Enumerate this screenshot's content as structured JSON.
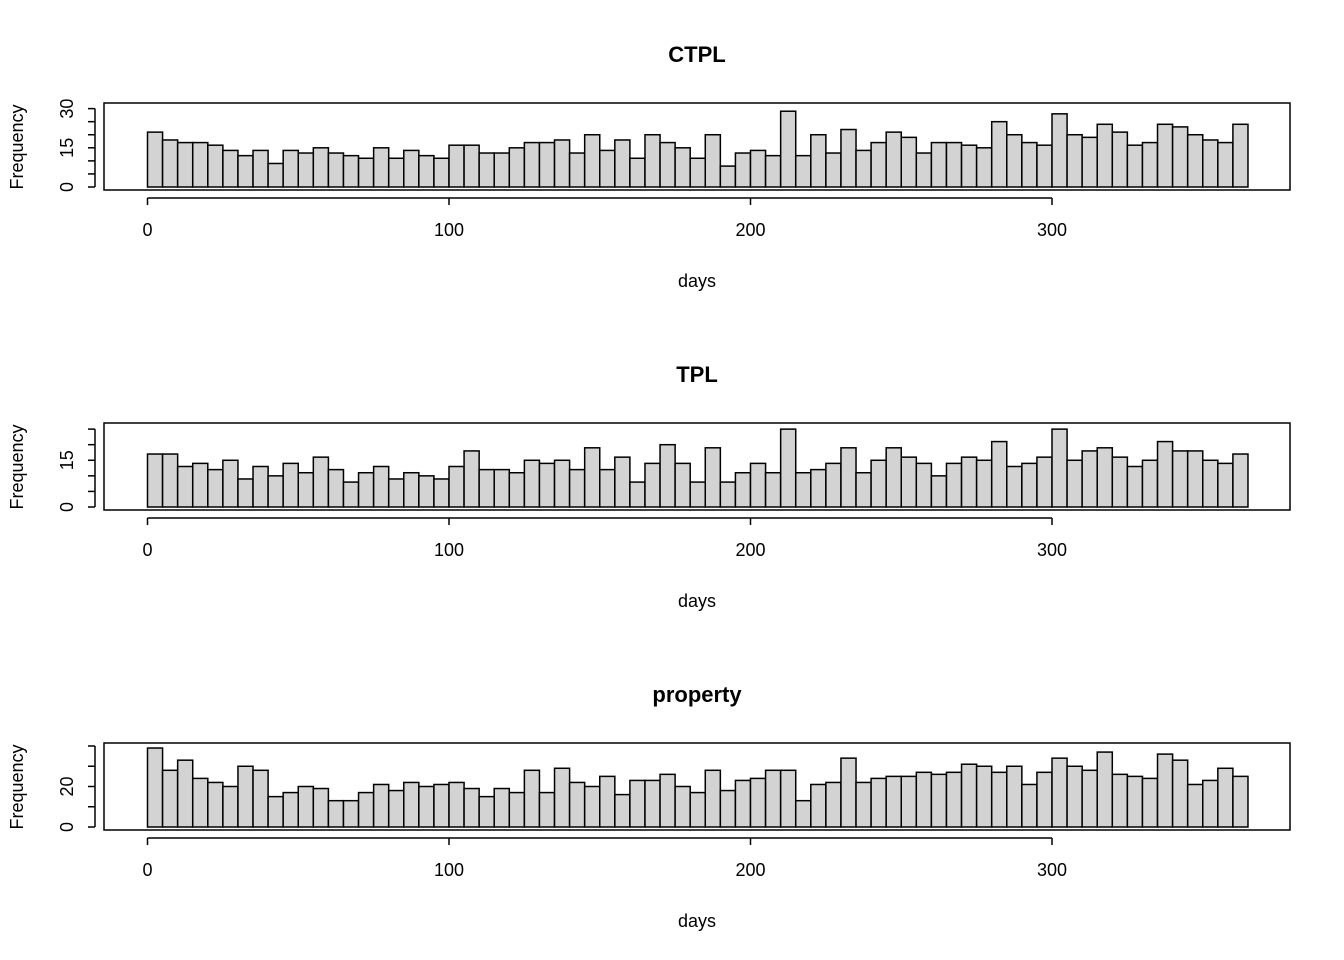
{
  "chart_data": [
    {
      "type": "bar",
      "title": "CTPL",
      "xlabel": "days",
      "ylabel": "Frequency",
      "bin_width": 5,
      "bin_start": 0,
      "xlim": [
        -15,
        380
      ],
      "ylim": [
        0,
        31
      ],
      "x_ticks": [
        "0",
        "100",
        "200",
        "300"
      ],
      "y_ticks": [
        "0",
        "15",
        "30"
      ],
      "y_minor_ticks": [
        5,
        10,
        20,
        25
      ],
      "bar_color": "#d3d3d3",
      "values": [
        21,
        18,
        17,
        17,
        16,
        14,
        12,
        14,
        9,
        14,
        13,
        15,
        13,
        12,
        11,
        15,
        11,
        14,
        12,
        11,
        16,
        16,
        13,
        13,
        15,
        17,
        17,
        18,
        13,
        20,
        14,
        18,
        11,
        20,
        17,
        15,
        11,
        20,
        8,
        13,
        14,
        12,
        29,
        12,
        20,
        13,
        22,
        14,
        17,
        21,
        19,
        13,
        17,
        17,
        16,
        15,
        25,
        20,
        17,
        16,
        28,
        20,
        19,
        24,
        21,
        16,
        17,
        24,
        23,
        20,
        18,
        17,
        24
      ]
    },
    {
      "type": "bar",
      "title": "TPL",
      "xlabel": "days",
      "ylabel": "Frequency",
      "bin_width": 5,
      "bin_start": 0,
      "xlim": [
        -15,
        380
      ],
      "ylim": [
        0,
        26
      ],
      "x_ticks": [
        "0",
        "100",
        "200",
        "300"
      ],
      "y_ticks": [
        "0",
        "15"
      ],
      "y_minor_ticks": [
        5,
        10,
        20,
        25
      ],
      "bar_color": "#d3d3d3",
      "values": [
        17,
        17,
        13,
        14,
        12,
        15,
        9,
        13,
        10,
        14,
        11,
        16,
        12,
        8,
        11,
        13,
        9,
        11,
        10,
        9,
        13,
        18,
        12,
        12,
        11,
        15,
        14,
        15,
        12,
        19,
        12,
        16,
        8,
        14,
        20,
        14,
        8,
        19,
        8,
        11,
        14,
        11,
        25,
        11,
        12,
        14,
        19,
        11,
        15,
        19,
        16,
        14,
        10,
        14,
        16,
        15,
        21,
        13,
        14,
        16,
        25,
        15,
        18,
        19,
        16,
        13,
        15,
        21,
        18,
        18,
        15,
        14,
        17
      ]
    },
    {
      "type": "bar",
      "title": "property",
      "xlabel": "days",
      "ylabel": "Frequency",
      "bin_width": 5,
      "bin_start": 0,
      "xlim": [
        -15,
        380
      ],
      "ylim": [
        0,
        40
      ],
      "x_ticks": [
        "0",
        "100",
        "200",
        "300"
      ],
      "y_ticks": [
        "0",
        "20"
      ],
      "y_minor_ticks": [
        10,
        30,
        40
      ],
      "bar_color": "#d3d3d3",
      "values": [
        39,
        28,
        33,
        24,
        22,
        20,
        30,
        28,
        15,
        17,
        20,
        19,
        13,
        13,
        17,
        21,
        18,
        22,
        20,
        21,
        22,
        19,
        15,
        19,
        17,
        28,
        17,
        29,
        22,
        20,
        25,
        16,
        23,
        23,
        26,
        20,
        17,
        28,
        18,
        23,
        24,
        28,
        28,
        13,
        21,
        22,
        34,
        22,
        24,
        25,
        25,
        27,
        26,
        27,
        31,
        30,
        27,
        30,
        21,
        27,
        34,
        30,
        28,
        37,
        26,
        25,
        24,
        36,
        33,
        21,
        23,
        29,
        25
      ]
    }
  ]
}
